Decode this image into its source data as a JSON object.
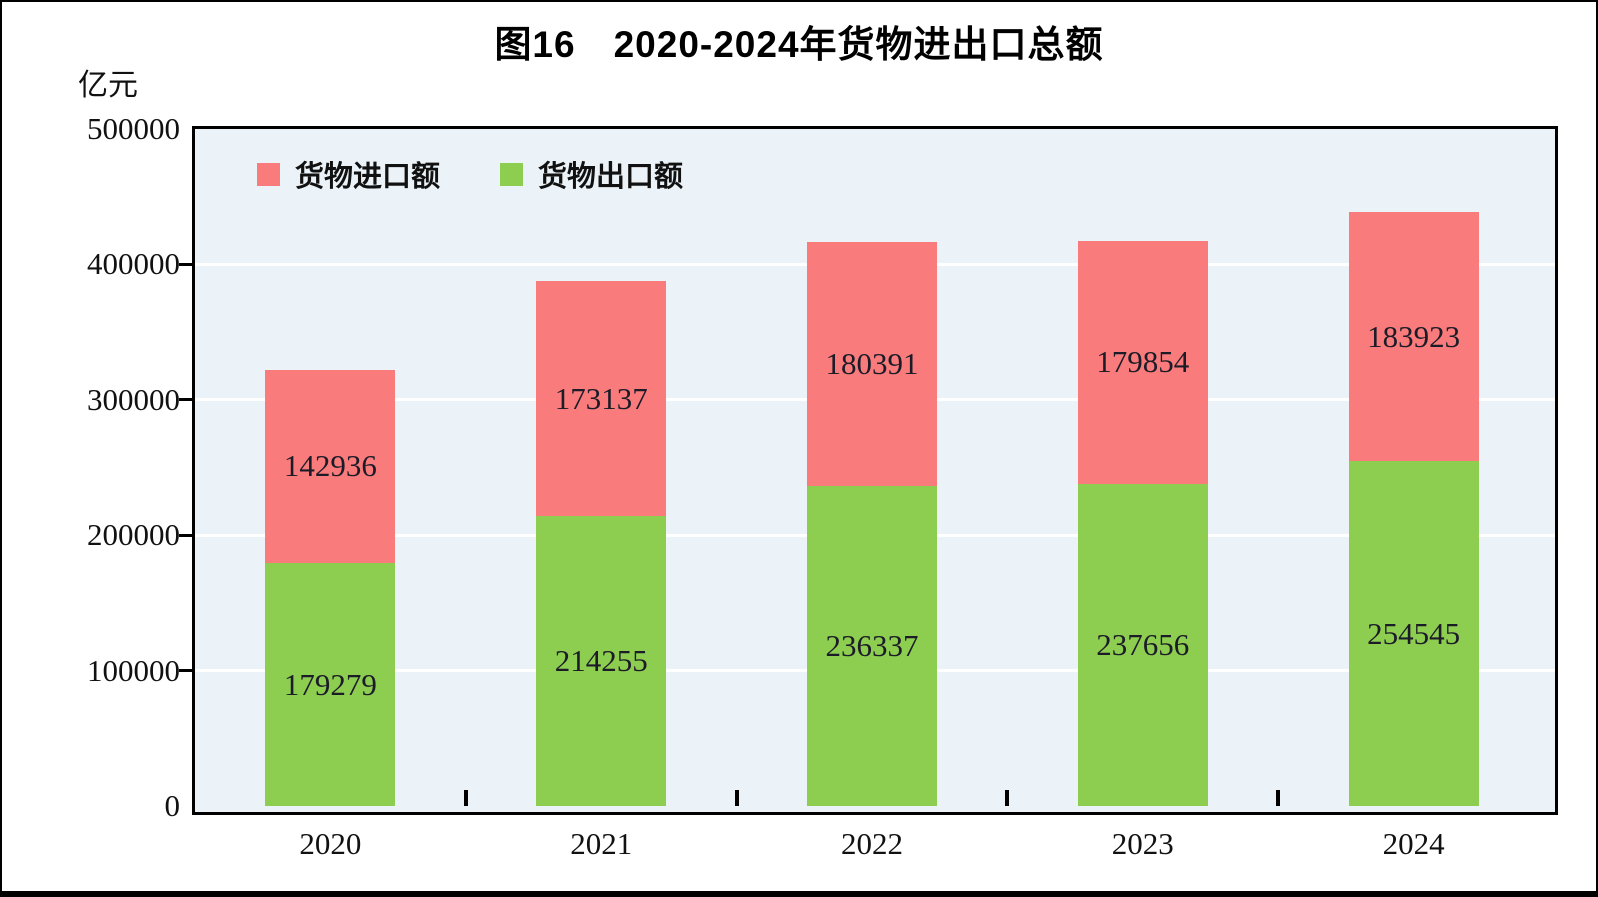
{
  "chart_data": {
    "type": "bar",
    "stacked": true,
    "title": "图16　2020-2024年货物进出口总额",
    "ylabel": "亿元",
    "xlabel": "",
    "categories": [
      "2020",
      "2021",
      "2022",
      "2023",
      "2024"
    ],
    "series": [
      {
        "name": "货物进口额",
        "color": "#F97B7B",
        "values": [
          142936,
          173137,
          180391,
          179854,
          183923
        ]
      },
      {
        "name": "货物出口额",
        "color": "#8DCD50",
        "values": [
          179279,
          214255,
          236337,
          237656,
          254545
        ]
      }
    ],
    "stack_order_bottom_to_top": [
      "货物出口额",
      "货物进口额"
    ],
    "ylim": [
      0,
      500000
    ],
    "yticks": [
      0,
      100000,
      200000,
      300000,
      400000,
      500000
    ],
    "grid": "horizontal-white",
    "legend_position": "top-left-inside",
    "plot_background": "#EBF3F8",
    "gridline_color": "#FFFFFF",
    "axis_color": "#000000"
  }
}
